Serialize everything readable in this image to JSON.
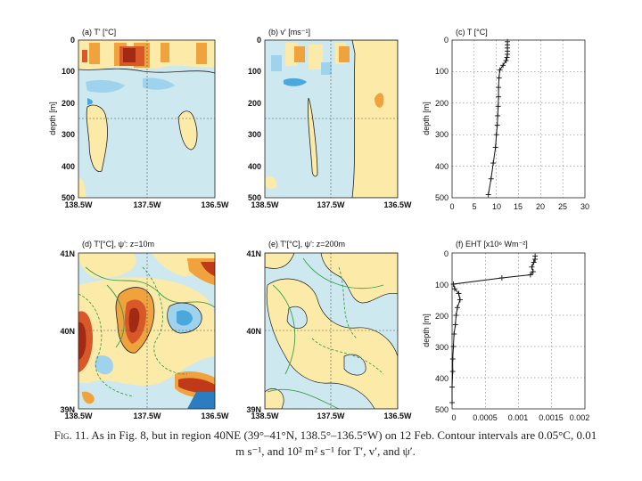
{
  "panels": [
    {
      "label": "(a) T' [°C]",
      "ylabel": "depth [m]",
      "yticks": [
        "0",
        "100",
        "200",
        "300",
        "400",
        "500"
      ],
      "xticks": [
        "138.5W",
        "137.5W",
        "136.5W"
      ],
      "theme": "vert-temp"
    },
    {
      "label": "(b) v' [ms⁻¹]",
      "ylabel": "",
      "yticks": [
        "0",
        "100",
        "200",
        "300",
        "400",
        "500"
      ],
      "xticks": [
        "138.5W",
        "137.5W",
        "136.5W"
      ],
      "theme": "vert-vel"
    },
    {
      "label": "(c) T [°C]",
      "ylabel": "depth [m]",
      "yticks": [
        "0",
        "100",
        "200",
        "300",
        "400",
        "500"
      ],
      "xticks": [
        "0",
        "5",
        "10",
        "15",
        "20",
        "25",
        "30"
      ],
      "theme": "profile-T"
    },
    {
      "label": "(d) T'[°C], ψ': z=10m",
      "ylabel": "",
      "yticks": [
        "41N",
        "40N",
        "39N"
      ],
      "xticks": [
        "138.5W",
        "137.5W",
        "136.5W"
      ],
      "theme": "map-10"
    },
    {
      "label": "(e) T'[°C], ψ': z=200m",
      "ylabel": "",
      "yticks": [
        "41N",
        "40N",
        "39N"
      ],
      "xticks": [
        "138.5W",
        "137.5W",
        "136.5W"
      ],
      "theme": "map-200"
    },
    {
      "label": "(f) EHT [x10⁶ Wm⁻²]",
      "ylabel": "depth [m]",
      "yticks": [
        "0",
        "100",
        "200",
        "300",
        "400",
        "500"
      ],
      "xticks": [
        "0",
        "0.0005",
        "0.001",
        "0.0015",
        "0.002"
      ],
      "theme": "profile-EHT"
    }
  ],
  "chart_data": [
    {
      "type": "line",
      "title": "(c) T [°C]",
      "xlabel": "",
      "ylabel": "depth [m]",
      "xlim": [
        0,
        30
      ],
      "ylim": [
        500,
        0
      ],
      "x": [
        12.5,
        12.5,
        12.5,
        12.5,
        12.5,
        12.4,
        12.2,
        11.5,
        10.8,
        10.6,
        10.5,
        10.5,
        10.4,
        10.3,
        10.2,
        10.0,
        9.8,
        9.3,
        8.8,
        8.2
      ],
      "y": [
        5,
        15,
        25,
        35,
        45,
        55,
        65,
        80,
        95,
        120,
        150,
        180,
        210,
        240,
        270,
        300,
        340,
        390,
        440,
        490
      ]
    },
    {
      "type": "line",
      "title": "(f) EHT [x10⁶ Wm⁻²]",
      "xlabel": "",
      "ylabel": "depth [m]",
      "xlim": [
        0,
        0.002
      ],
      "ylim": [
        500,
        0
      ],
      "x": [
        0.00125,
        0.00125,
        0.00123,
        0.0012,
        0.00122,
        0.00118,
        0.00075,
        2e-05,
        4e-05,
        0.0001,
        0.00012,
        8e-05,
        6e-05,
        5e-05,
        3e-05,
        2e-05,
        1e-05,
        1e-05,
        0.0,
        0.0
      ],
      "y": [
        10,
        20,
        30,
        45,
        60,
        70,
        80,
        100,
        115,
        130,
        150,
        175,
        200,
        230,
        260,
        300,
        340,
        380,
        430,
        480
      ]
    }
  ],
  "caption": {
    "fig": "Fig. 11.",
    "text": "As in Fig. 8, but in region 40NE (39°–41°N, 138.5°–136.5°W) on 12 Feb. Contour intervals are 0.05°C, 0.01 m s⁻¹, and 10² m² s⁻¹ for T′, v′, and ψ′."
  },
  "colors": {
    "cold": "#cde8ef",
    "cold_strong": "#4aa8dc",
    "warm": "#fbeaa8",
    "warm_mid": "#f0a23c",
    "warm_strong": "#c03a1a",
    "stream": "#3aa04a"
  }
}
